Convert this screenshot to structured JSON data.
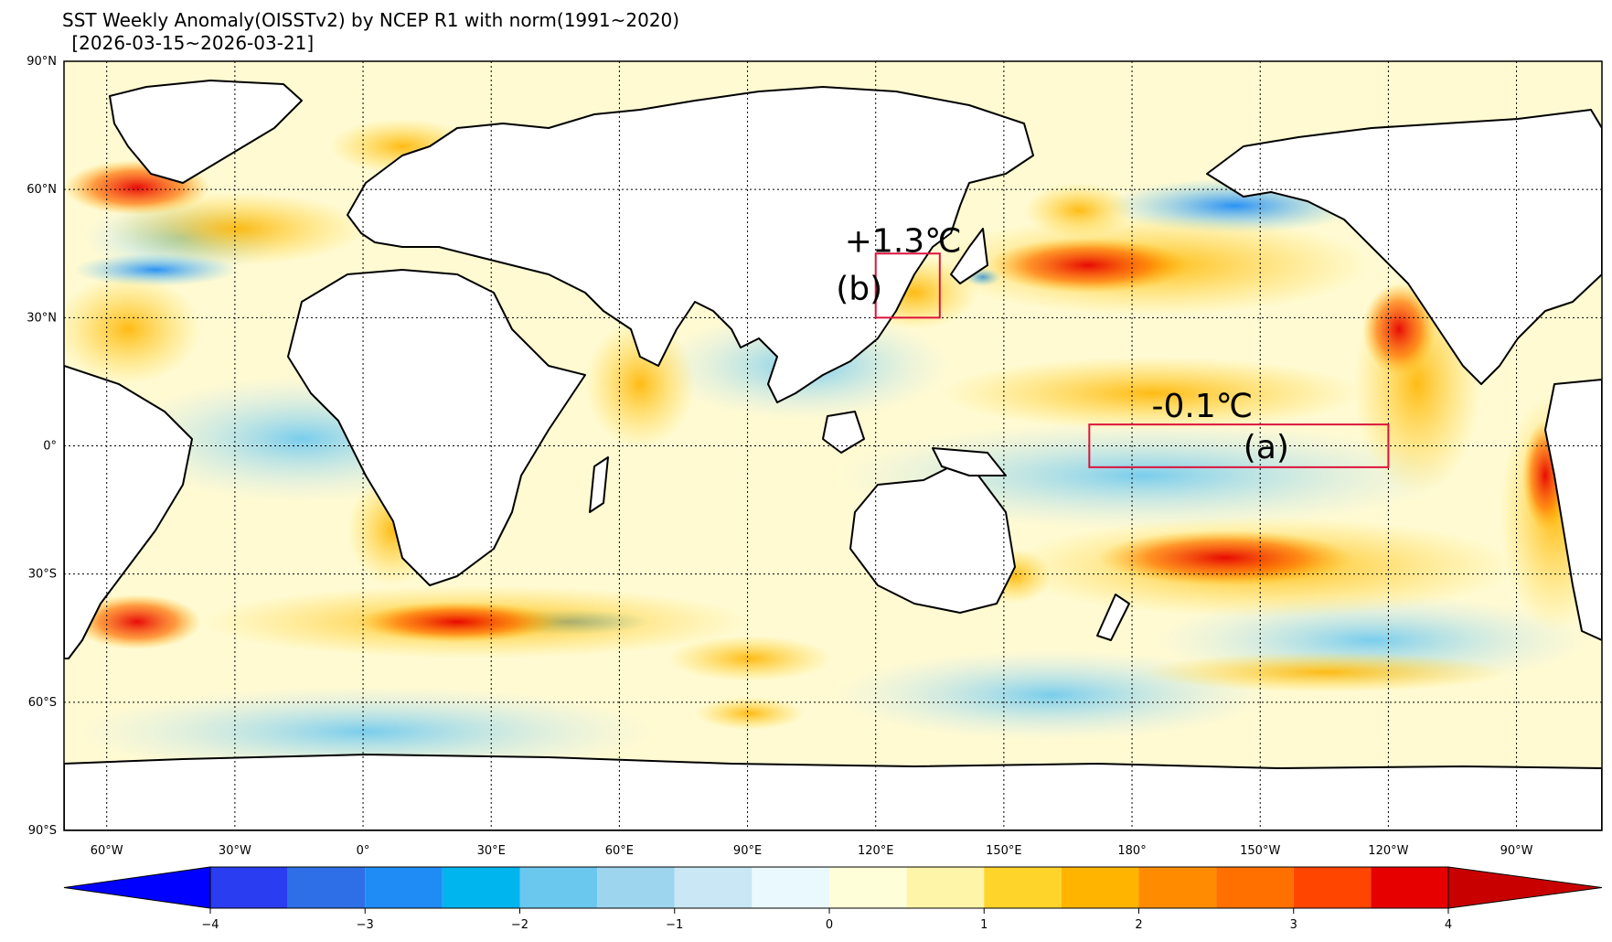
{
  "title": "SST Weekly Anomaly(OISSTv2) by NCEP R1 with norm(1991~2020)",
  "subtitle": " [2026-03-15~2026-03-21]",
  "lat_labels": [
    "90°N",
    "60°N",
    "30°N",
    "0°",
    "30°S",
    "60°S",
    "90°S"
  ],
  "lon_labels": [
    "60°W",
    "30°W",
    "0°",
    "30°E",
    "60°E",
    "90°E",
    "120°E",
    "150°E",
    "180°",
    "150°W",
    "120°W",
    "90°W"
  ],
  "boxes": [
    {
      "id": "a",
      "label": "(a)",
      "value": "-0.1℃",
      "lon_range": [
        170,
        240
      ],
      "lat_range": [
        -5,
        5
      ]
    },
    {
      "id": "b",
      "label": "(b)",
      "value": "+1.3℃",
      "lon_range": [
        120,
        135
      ],
      "lat_range": [
        30,
        45
      ]
    }
  ],
  "colorbar": {
    "tick_labels": [
      "−4",
      "−3",
      "−2",
      "−1",
      "0",
      "1",
      "2",
      "3",
      "4"
    ],
    "colors": [
      "#2b3df0",
      "#2e6fe8",
      "#1f8cf5",
      "#00b5ee",
      "#6ac8ef",
      "#9dd5ef",
      "#c9e7f5",
      "#e9f9fd",
      "#fefed8",
      "#fff5a8",
      "#ffd42a",
      "#ffb400",
      "#ff8c00",
      "#ff7000",
      "#ff4500",
      "#e60000",
      "#c00000"
    ],
    "under_color": "#0000ff",
    "over_color": "#c80000"
  },
  "land_color": "#ffffff",
  "coast_color": "#000000",
  "box_color": "#dc143c"
}
